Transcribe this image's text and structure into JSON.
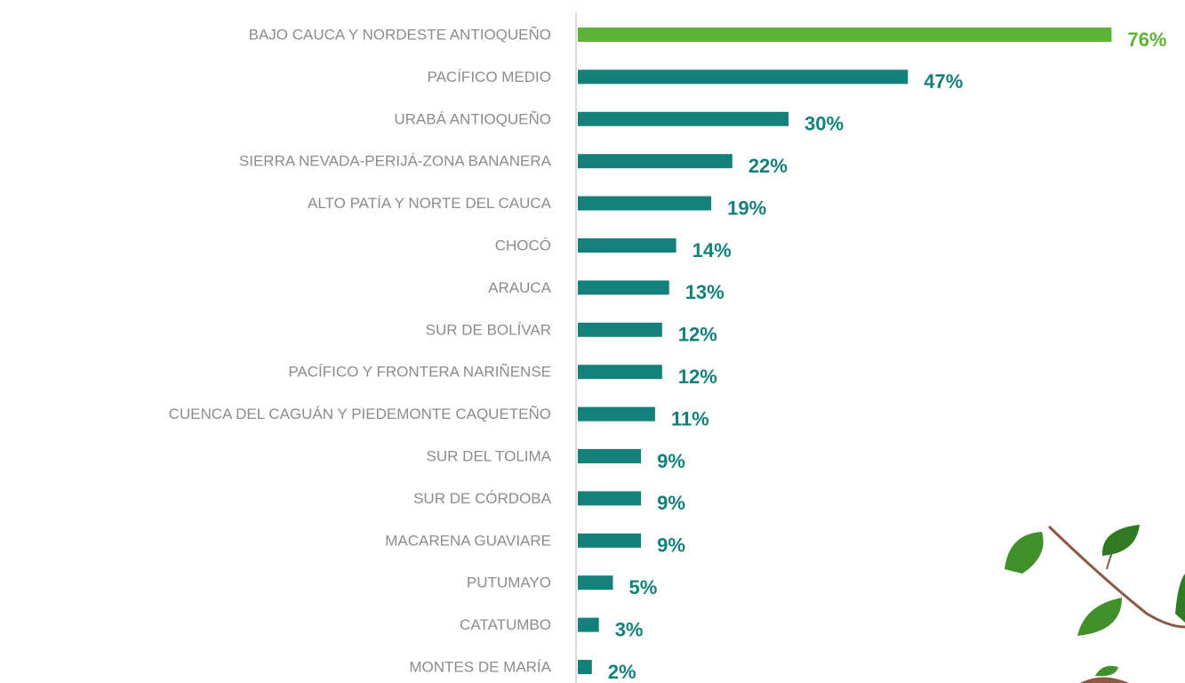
{
  "chart_data": {
    "type": "hbar",
    "categories": [
      "BAJO CAUCA Y NORDESTE ANTIOQUEÑO",
      "PACÍFICO MEDIO",
      "URABÁ ANTIOQUEÑO",
      "SIERRA NEVADA-PERIJÁ-ZONA BANANERA",
      "ALTO PATÍA Y NORTE DEL CAUCA",
      "CHOCÓ",
      "ARAUCA",
      "SUR DE BOLÍVAR",
      "PACÍFICO Y FRONTERA NARIÑENSE",
      "CUENCA DEL CAGUÁN Y PIEDEMONTE CAQUETEÑO",
      "SUR DEL TOLIMA",
      "SUR DE CÓRDOBA",
      "MACARENA GUAVIARE",
      "PUTUMAYO",
      "CATATUMBO",
      "MONTES DE MARÍA"
    ],
    "values": [
      76,
      47,
      30,
      22,
      19,
      14,
      13,
      12,
      12,
      11,
      9,
      9,
      9,
      5,
      3,
      2
    ],
    "value_labels": [
      "76%",
      "47%",
      "30%",
      "22%",
      "19%",
      "14%",
      "13%",
      "12%",
      "12%",
      "11%",
      "9%",
      "9%",
      "9%",
      "5%",
      "3%",
      "2%"
    ],
    "colors": [
      "#5db336",
      "#138079",
      "#138079",
      "#138079",
      "#138079",
      "#138079",
      "#138079",
      "#138079",
      "#138079",
      "#138079",
      "#138079",
      "#138079",
      "#138079",
      "#138079",
      "#138079",
      "#138079"
    ]
  }
}
